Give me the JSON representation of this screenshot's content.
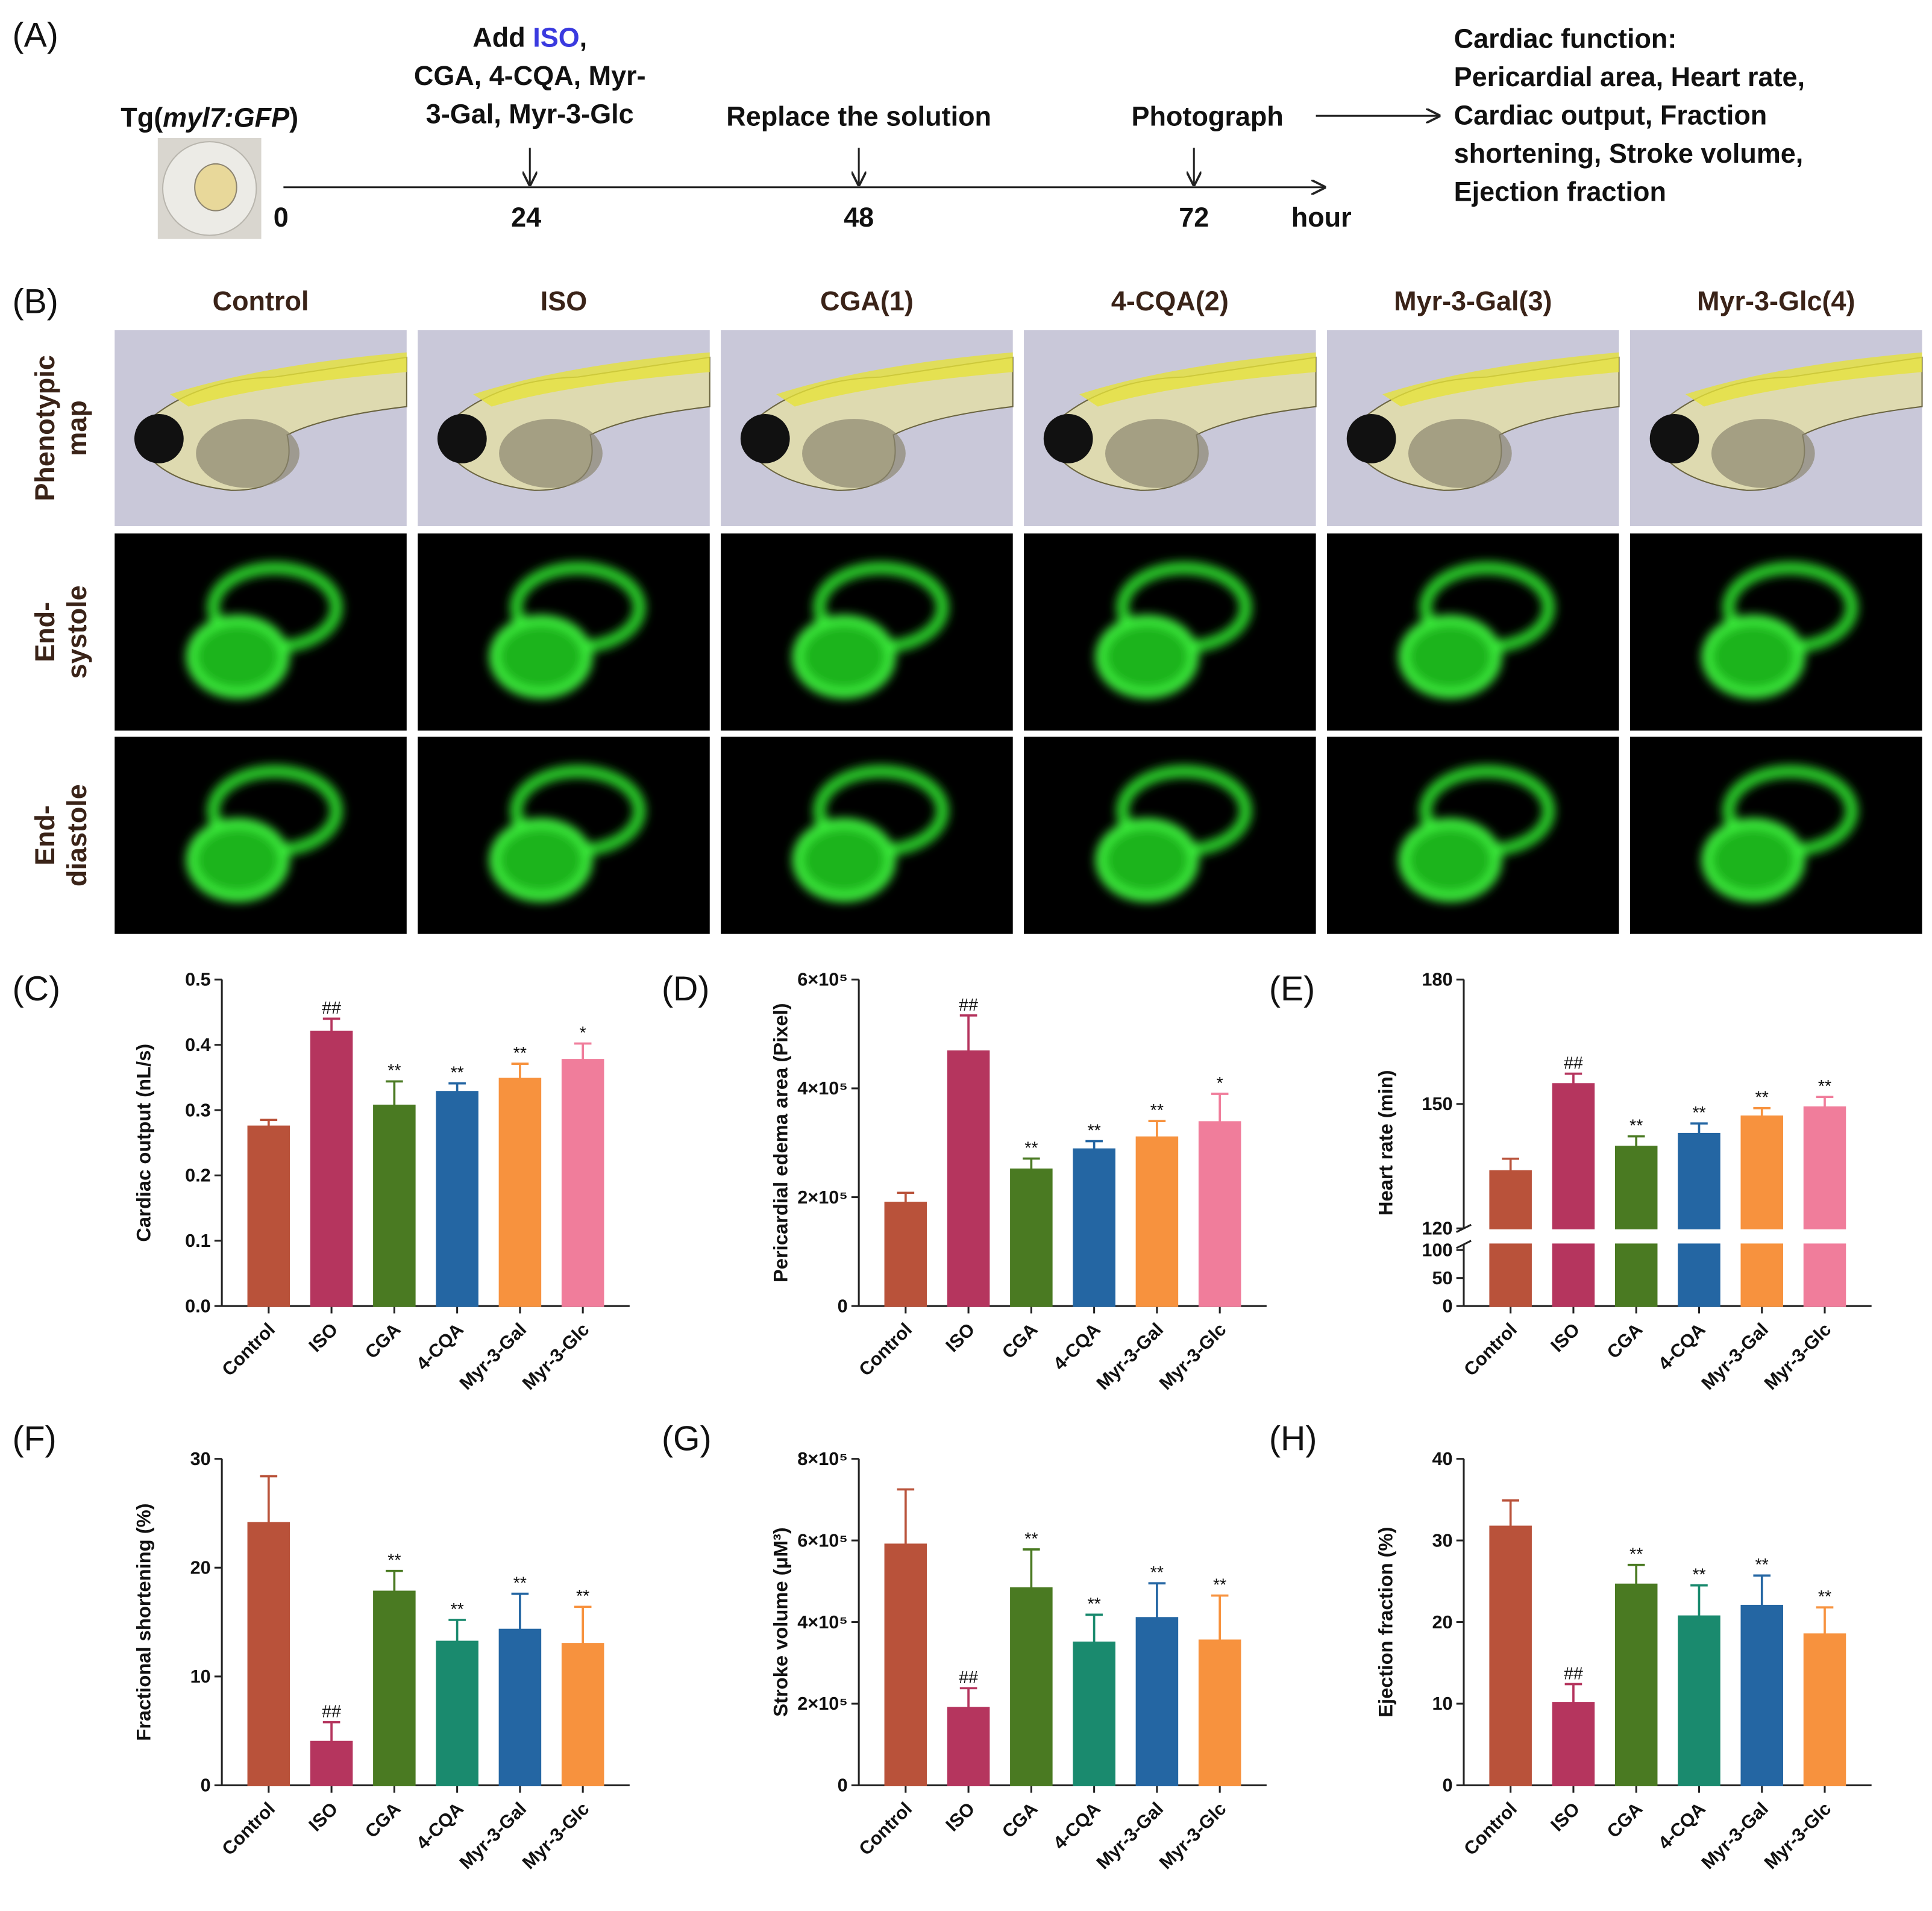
{
  "panel_a": {
    "label": "(A)",
    "embryo": [
      "Tg(",
      "myl7:GFP",
      ")"
    ],
    "add_line1": [
      "Add ",
      "ISO",
      ","
    ],
    "add_line2": "CGA, 4-CQA, Myr-",
    "add_line3": "3-Gal, Myr-3-Glc",
    "replace": "Replace the solution",
    "photograph": "Photograph",
    "timeline": [
      0,
      24,
      48,
      72
    ],
    "unit": "hour",
    "outcome": [
      "Cardiac function:",
      "Pericardial area, Heart rate,",
      "Cardiac output, Fraction",
      "shortening, Stroke volume,",
      "Ejection fraction"
    ]
  },
  "panel_b": {
    "label": "(B)",
    "columns": [
      "Control",
      "ISO",
      "CGA(1)",
      "4-CQA(2)",
      "Myr-3-Gal(3)",
      "Myr-3-Glc(4)"
    ],
    "rows": [
      [
        "Phenotypic",
        "map"
      ],
      [
        "End-",
        "systole"
      ],
      [
        "End-",
        "diastole"
      ]
    ]
  },
  "chart_data": [
    {
      "type": "bar",
      "label": "(C)",
      "y_label": "Cardiac output (nL/s)",
      "categories": [
        "Control",
        "ISO",
        "CGA",
        "4-CQA",
        "Myr-3-Gal",
        "Myr-3-Glc"
      ],
      "values": [
        0.275,
        0.42,
        0.307,
        0.328,
        0.348,
        0.377
      ],
      "errors": [
        0.01,
        0.02,
        0.037,
        0.013,
        0.023,
        0.025
      ],
      "annotations": [
        null,
        "##",
        "**",
        "**",
        "**",
        "*"
      ],
      "colors": [
        "#b9523a",
        "#b5355e",
        "#4a7a22",
        "#2466a3",
        "#f7923e",
        "#f07d9b"
      ],
      "ylim": [
        0,
        0.5
      ],
      "yticks": [
        {
          "value": 0,
          "label": "0.0"
        },
        0.1,
        0.2,
        0.3,
        0.4,
        0.5
      ]
    },
    {
      "type": "bar",
      "label": "(D)",
      "y_label": "Pericardial edema area (Pixel)",
      "categories": [
        "Control",
        "ISO",
        "CGA",
        "4-CQA",
        "Myr-3-Gal",
        "Myr-3-Glc"
      ],
      "values": [
        190000,
        468000,
        251000,
        288000,
        310000,
        338000
      ],
      "errors": [
        18000,
        66000,
        20000,
        15000,
        30000,
        52000
      ],
      "annotations": [
        null,
        "##",
        "**",
        "**",
        "**",
        "*"
      ],
      "colors": [
        "#b9523a",
        "#b5355e",
        "#4a7a22",
        "#2466a3",
        "#f7923e",
        "#f07d9b"
      ],
      "ylim": [
        0,
        600000
      ],
      "yticks": [
        0,
        {
          "value": 200000,
          "label": "2×10⁵"
        },
        {
          "value": 400000,
          "label": "4×10⁵"
        },
        {
          "value": 600000,
          "label": "6×10⁵"
        }
      ]
    },
    {
      "type": "bar",
      "label": "(E)",
      "y_label": "Heart rate (min)",
      "categories": [
        "Control",
        "ISO",
        "CGA",
        "4-CQA",
        "Myr-3-Gal",
        "Myr-3-Glc"
      ],
      "values": [
        133.8,
        154.8,
        139.7,
        142.8,
        147,
        149.2
      ],
      "errors": [
        3,
        2.5,
        2.5,
        2.5,
        2,
        2.5
      ],
      "annotations": [
        null,
        "##",
        "**",
        "**",
        "**",
        "**"
      ],
      "colors": [
        "#b9523a",
        "#b5355e",
        "#4a7a22",
        "#2466a3",
        "#f7923e",
        "#f07d9b"
      ],
      "ylim": [
        0,
        180
      ],
      "ybreak": [
        110,
        120
      ],
      "yticks": [
        0,
        50,
        100,
        120,
        150,
        180
      ]
    },
    {
      "type": "bar",
      "label": "(F)",
      "y_label": "Fractional shortening (%)",
      "categories": [
        "Control",
        "ISO",
        "CGA",
        "4-CQA",
        "Myr-3-Gal",
        "Myr-3-Glc"
      ],
      "values": [
        24.1,
        4.0,
        17.8,
        13.2,
        14.3,
        13.0
      ],
      "errors": [
        4.3,
        1.8,
        1.9,
        2.0,
        3.3,
        3.4
      ],
      "annotations": [
        null,
        "##",
        "**",
        "**",
        "**",
        "**"
      ],
      "colors": [
        "#b9523a",
        "#b5355e",
        "#4a7a22",
        "#1a8a6e",
        "#2466a3",
        "#f7923e"
      ],
      "ylim": [
        0,
        30
      ],
      "yticks": [
        0,
        10,
        20,
        30
      ]
    },
    {
      "type": "bar",
      "label": "(G)",
      "y_label": "Stroke volume (μM³)",
      "categories": [
        "Control",
        "ISO",
        "CGA",
        "4-CQA",
        "Myr-3-Gal",
        "Myr-3-Glc"
      ],
      "values": [
        590000,
        190000,
        483000,
        350000,
        410000,
        355000
      ],
      "errors": [
        135000,
        48000,
        95000,
        68000,
        85000,
        110000
      ],
      "annotations": [
        null,
        "##",
        "**",
        "**",
        "**",
        "**"
      ],
      "colors": [
        "#b9523a",
        "#b5355e",
        "#4a7a22",
        "#1a8a6e",
        "#2466a3",
        "#f7923e"
      ],
      "ylim": [
        0,
        800000
      ],
      "yticks": [
        0,
        {
          "value": 200000,
          "label": "2×10⁵"
        },
        {
          "value": 400000,
          "label": "4×10⁵"
        },
        {
          "value": 600000,
          "label": "6×10⁵"
        },
        {
          "value": 800000,
          "label": "8×10⁵"
        }
      ]
    },
    {
      "type": "bar",
      "label": "(H)",
      "y_label": "Ejection fraction (%)",
      "categories": [
        "Control",
        "ISO",
        "CGA",
        "4-CQA",
        "Myr-3-Gal",
        "Myr-3-Glc"
      ],
      "values": [
        31.7,
        10.1,
        24.6,
        20.7,
        22.0,
        18.5
      ],
      "errors": [
        3.2,
        2.3,
        2.4,
        3.8,
        3.7,
        3.3
      ],
      "annotations": [
        null,
        "##",
        "**",
        "**",
        "**",
        "**"
      ],
      "colors": [
        "#b9523a",
        "#b5355e",
        "#4a7a22",
        "#1a8a6e",
        "#2466a3",
        "#f7923e"
      ],
      "ylim": [
        0,
        40
      ],
      "yticks": [
        0,
        10,
        20,
        30,
        40
      ]
    }
  ]
}
